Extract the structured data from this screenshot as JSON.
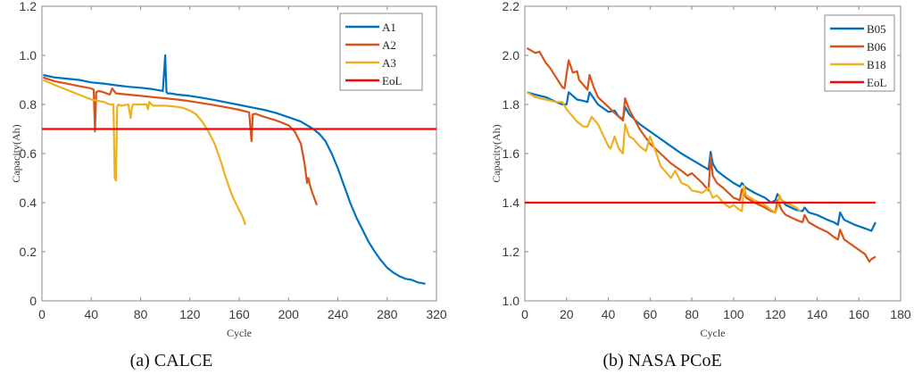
{
  "chart_data": [
    {
      "type": "line",
      "caption": "(a) CALCE",
      "xlabel": "Cycle",
      "ylabel": "Capacity(Ah)",
      "xlim": [
        0,
        320
      ],
      "ylim": [
        0,
        1.2
      ],
      "xticks": [
        0,
        40,
        80,
        120,
        160,
        200,
        240,
        280,
        320
      ],
      "yticks": [
        0,
        0.2,
        0.4,
        0.6,
        0.8,
        1.0,
        1.2
      ],
      "ytick_labels": [
        "0",
        "0.2",
        "0.4",
        "0.6",
        "0.8",
        "1.0",
        "1.2"
      ],
      "grid": false,
      "legend_position": "top-right",
      "series": [
        {
          "name": "A1",
          "color": "#0072BD",
          "x": [
            1,
            10,
            20,
            30,
            40,
            50,
            60,
            70,
            80,
            90,
            98,
            100,
            101,
            102,
            104,
            110,
            120,
            130,
            140,
            150,
            160,
            170,
            180,
            190,
            200,
            210,
            220,
            225,
            230,
            235,
            240,
            245,
            250,
            255,
            260,
            265,
            270,
            275,
            280,
            285,
            290,
            295,
            300,
            305,
            311
          ],
          "y": [
            0.92,
            0.91,
            0.905,
            0.9,
            0.89,
            0.885,
            0.878,
            0.872,
            0.868,
            0.862,
            0.855,
            1.0,
            0.85,
            0.845,
            0.845,
            0.84,
            0.835,
            0.827,
            0.818,
            0.808,
            0.798,
            0.788,
            0.778,
            0.765,
            0.748,
            0.73,
            0.7,
            0.68,
            0.65,
            0.6,
            0.54,
            0.47,
            0.4,
            0.34,
            0.29,
            0.24,
            0.2,
            0.165,
            0.135,
            0.115,
            0.1,
            0.09,
            0.085,
            0.075,
            0.07
          ]
        },
        {
          "name": "A2",
          "color": "#D95319",
          "x": [
            1,
            10,
            20,
            30,
            40,
            42,
            43,
            44,
            46,
            50,
            55,
            57,
            60,
            70,
            80,
            90,
            100,
            110,
            120,
            130,
            140,
            150,
            160,
            168,
            170,
            171,
            173,
            180,
            190,
            200,
            205,
            210,
            213,
            215,
            216,
            218,
            220,
            223
          ],
          "y": [
            0.91,
            0.895,
            0.885,
            0.875,
            0.865,
            0.86,
            0.69,
            0.85,
            0.855,
            0.85,
            0.84,
            0.865,
            0.845,
            0.84,
            0.835,
            0.83,
            0.825,
            0.82,
            0.813,
            0.805,
            0.797,
            0.788,
            0.778,
            0.768,
            0.65,
            0.76,
            0.762,
            0.75,
            0.735,
            0.715,
            0.69,
            0.64,
            0.56,
            0.48,
            0.5,
            0.46,
            0.43,
            0.39
          ]
        },
        {
          "name": "A3",
          "color": "#EDB120",
          "x": [
            1,
            10,
            20,
            30,
            40,
            50,
            55,
            58,
            59,
            60,
            61,
            62,
            64,
            70,
            72,
            73,
            74,
            80,
            85,
            86,
            87,
            90,
            100,
            110,
            115,
            120,
            125,
            130,
            135,
            140,
            145,
            148,
            150,
            152,
            155,
            158,
            160,
            163,
            165
          ],
          "y": [
            0.9,
            0.88,
            0.86,
            0.84,
            0.82,
            0.81,
            0.8,
            0.8,
            0.5,
            0.49,
            0.79,
            0.8,
            0.795,
            0.8,
            0.745,
            0.79,
            0.8,
            0.8,
            0.8,
            0.78,
            0.81,
            0.795,
            0.795,
            0.79,
            0.785,
            0.775,
            0.76,
            0.73,
            0.69,
            0.64,
            0.57,
            0.52,
            0.49,
            0.46,
            0.42,
            0.39,
            0.37,
            0.34,
            0.31
          ]
        },
        {
          "name": "EoL",
          "color": "#FF0000",
          "x": [
            0,
            320
          ],
          "y": [
            0.7,
            0.7
          ]
        }
      ]
    },
    {
      "type": "line",
      "caption": "(b) NASA PCoE",
      "xlabel": "Cycle",
      "ylabel": "Capacity(Ah)",
      "xlim": [
        0,
        180
      ],
      "ylim": [
        1.0,
        2.2
      ],
      "xticks": [
        0,
        20,
        40,
        60,
        80,
        100,
        120,
        140,
        160,
        180
      ],
      "yticks": [
        1.0,
        1.2,
        1.4,
        1.6,
        1.8,
        2.0,
        2.2
      ],
      "ytick_labels": [
        "1.0",
        "1.2",
        "1.4",
        "1.6",
        "1.8",
        "2.0",
        "2.2"
      ],
      "grid": false,
      "legend_position": "top-right",
      "series": [
        {
          "name": "B05",
          "color": "#0072BD",
          "x": [
            1,
            5,
            10,
            15,
            18,
            20,
            21,
            25,
            28,
            30,
            31,
            35,
            40,
            43,
            45,
            47,
            48,
            50,
            55,
            60,
            65,
            70,
            75,
            80,
            85,
            88,
            89,
            90,
            92,
            95,
            100,
            103,
            104,
            106,
            110,
            115,
            118,
            120,
            121,
            123,
            125,
            130,
            133,
            134,
            136,
            140,
            145,
            148,
            150,
            151,
            153,
            158,
            163,
            166,
            168
          ],
          "y": [
            1.85,
            1.84,
            1.83,
            1.81,
            1.8,
            1.8,
            1.85,
            1.82,
            1.815,
            1.81,
            1.85,
            1.8,
            1.77,
            1.775,
            1.75,
            1.74,
            1.79,
            1.76,
            1.72,
            1.69,
            1.66,
            1.63,
            1.6,
            1.575,
            1.55,
            1.535,
            1.607,
            1.56,
            1.53,
            1.51,
            1.48,
            1.465,
            1.48,
            1.46,
            1.44,
            1.42,
            1.4,
            1.41,
            1.435,
            1.41,
            1.39,
            1.37,
            1.365,
            1.38,
            1.36,
            1.35,
            1.33,
            1.32,
            1.31,
            1.36,
            1.33,
            1.31,
            1.295,
            1.285,
            1.32
          ]
        },
        {
          "name": "B06",
          "color": "#D95319",
          "x": [
            1,
            5,
            7,
            8,
            10,
            12,
            18,
            19,
            21,
            23,
            25,
            26,
            28,
            30,
            31,
            33,
            35,
            40,
            43,
            45,
            47,
            48,
            50,
            55,
            60,
            65,
            70,
            75,
            78,
            80,
            85,
            88,
            89,
            90,
            92,
            95,
            100,
            103,
            104,
            106,
            110,
            115,
            118,
            120,
            121,
            123,
            125,
            130,
            133,
            134,
            136,
            140,
            145,
            148,
            150,
            151,
            153,
            158,
            163,
            165,
            166,
            168
          ],
          "y": [
            2.03,
            2.01,
            2.015,
            2.0,
            1.97,
            1.95,
            1.87,
            1.865,
            1.98,
            1.93,
            1.935,
            1.9,
            1.88,
            1.86,
            1.92,
            1.87,
            1.83,
            1.79,
            1.765,
            1.75,
            1.735,
            1.825,
            1.78,
            1.7,
            1.64,
            1.6,
            1.56,
            1.53,
            1.51,
            1.52,
            1.48,
            1.45,
            1.59,
            1.51,
            1.48,
            1.46,
            1.42,
            1.41,
            1.455,
            1.42,
            1.4,
            1.38,
            1.365,
            1.36,
            1.41,
            1.37,
            1.35,
            1.33,
            1.32,
            1.35,
            1.32,
            1.3,
            1.28,
            1.26,
            1.25,
            1.29,
            1.25,
            1.22,
            1.19,
            1.16,
            1.17,
            1.18
          ]
        },
        {
          "name": "B18",
          "color": "#EDB120",
          "x": [
            1,
            5,
            10,
            15,
            18,
            20,
            25,
            28,
            30,
            32,
            35,
            40,
            41,
            43,
            45,
            47,
            48,
            50,
            52,
            55,
            58,
            60,
            63,
            65,
            70,
            72,
            75,
            78,
            80,
            85,
            88,
            90,
            92,
            95,
            98,
            100,
            103,
            104,
            105,
            106,
            108,
            110,
            115,
            118,
            120,
            121,
            122,
            123,
            125,
            130,
            132
          ],
          "y": [
            1.85,
            1.83,
            1.82,
            1.81,
            1.81,
            1.78,
            1.73,
            1.71,
            1.71,
            1.75,
            1.72,
            1.63,
            1.62,
            1.67,
            1.62,
            1.6,
            1.72,
            1.67,
            1.66,
            1.63,
            1.61,
            1.67,
            1.6,
            1.55,
            1.5,
            1.53,
            1.48,
            1.47,
            1.45,
            1.44,
            1.46,
            1.42,
            1.43,
            1.4,
            1.38,
            1.39,
            1.37,
            1.365,
            1.47,
            1.43,
            1.42,
            1.41,
            1.39,
            1.37,
            1.36,
            1.38,
            1.43,
            1.41,
            1.4,
            1.38,
            1.365
          ]
        },
        {
          "name": "EoL",
          "color": "#FF0000",
          "x": [
            0,
            168
          ],
          "y": [
            1.4,
            1.4
          ]
        }
      ]
    }
  ]
}
